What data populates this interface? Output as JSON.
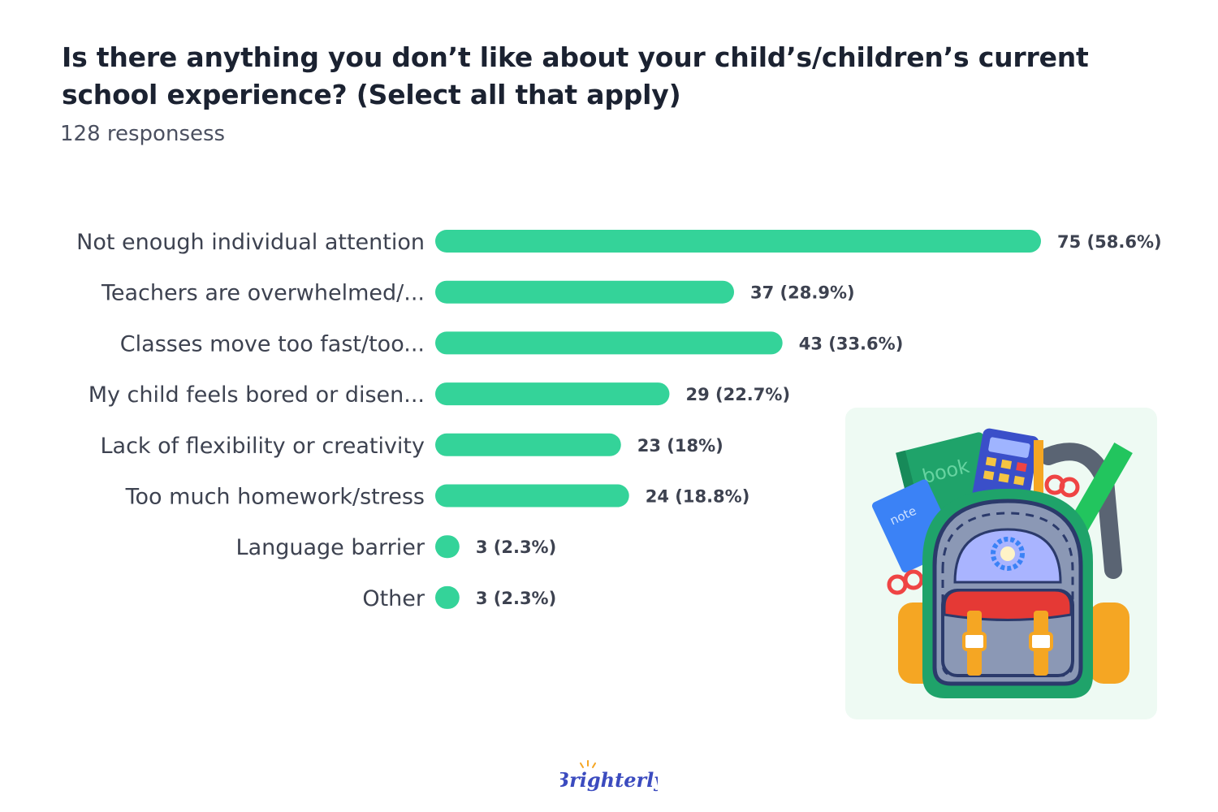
{
  "header": {
    "title": "Is there anything you don’t like about your child’s/children’s current school experience? (Select all that apply)",
    "subtitle": "128 responsess"
  },
  "brand": {
    "logo_text": "Brighterly"
  },
  "colors": {
    "bar": "#34d399",
    "text": "#3d4250",
    "title": "#1b2231",
    "illustration_bg": "#eefaf3"
  },
  "chart_data": {
    "type": "bar",
    "orientation": "horizontal",
    "categories": [
      "Not enough individual attention",
      "Teachers are overwhelmed/...",
      "Classes move too fast/too...",
      "My child feels bored or disen...",
      "Lack of flexibility or creativity",
      "Too much homework/stress",
      "Language barrier",
      "Other"
    ],
    "values": [
      75,
      37,
      43,
      29,
      23,
      24,
      3,
      3
    ],
    "data_labels": [
      "75 (58.6%)",
      "37 (28.9%)",
      "43 (33.6%)",
      "29 (22.7%)",
      "23 (18%)",
      "24 (18.8%)",
      "3 (2.3%)",
      "3 (2.3%)"
    ],
    "xlim": [
      0,
      75
    ],
    "grid": false,
    "legend": "none"
  },
  "illustration": {
    "book_text": "book",
    "note_text": "note"
  }
}
